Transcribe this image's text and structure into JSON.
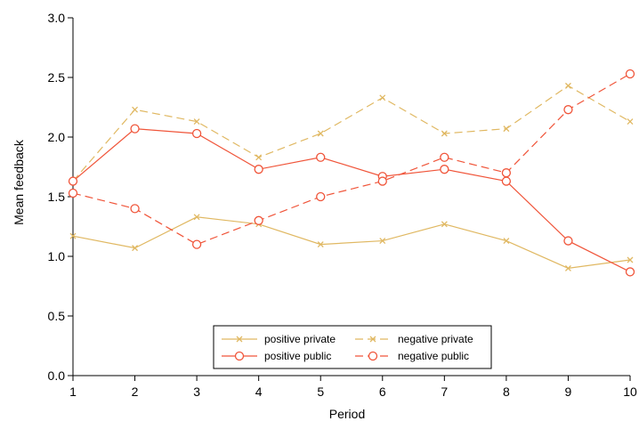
{
  "chart_data": {
    "type": "line",
    "title": "",
    "xlabel": "Period",
    "ylabel": "Mean feedback",
    "x": [
      1,
      2,
      3,
      4,
      5,
      6,
      7,
      8,
      9,
      10
    ],
    "xlim": [
      1,
      10
    ],
    "ylim": [
      0,
      3
    ],
    "yticks": [
      "0.0",
      "0.5",
      "1.0",
      "1.5",
      "2.0",
      "2.5",
      "3.0"
    ],
    "grid": false,
    "legend_position": "bottom-center",
    "series": [
      {
        "name": "positive private",
        "color": "#e0b862",
        "line_style": "solid",
        "marker": "x",
        "values": [
          1.17,
          1.07,
          1.33,
          1.27,
          1.1,
          1.13,
          1.27,
          1.13,
          0.9,
          0.97
        ]
      },
      {
        "name": "negative private",
        "color": "#e0b862",
        "line_style": "dashed",
        "marker": "x",
        "values": [
          1.63,
          2.23,
          2.13,
          1.83,
          2.03,
          2.33,
          2.03,
          2.07,
          2.43,
          2.13
        ]
      },
      {
        "name": "positive public",
        "color": "#f0553a",
        "line_style": "solid",
        "marker": "circle",
        "values": [
          1.63,
          2.07,
          2.03,
          1.73,
          1.83,
          1.67,
          1.73,
          1.63,
          1.13,
          0.87
        ]
      },
      {
        "name": "negative public",
        "color": "#f0553a",
        "line_style": "dashed",
        "marker": "circle",
        "values": [
          1.53,
          1.4,
          1.1,
          1.3,
          1.5,
          1.63,
          1.83,
          1.7,
          2.23,
          2.53
        ]
      }
    ]
  }
}
